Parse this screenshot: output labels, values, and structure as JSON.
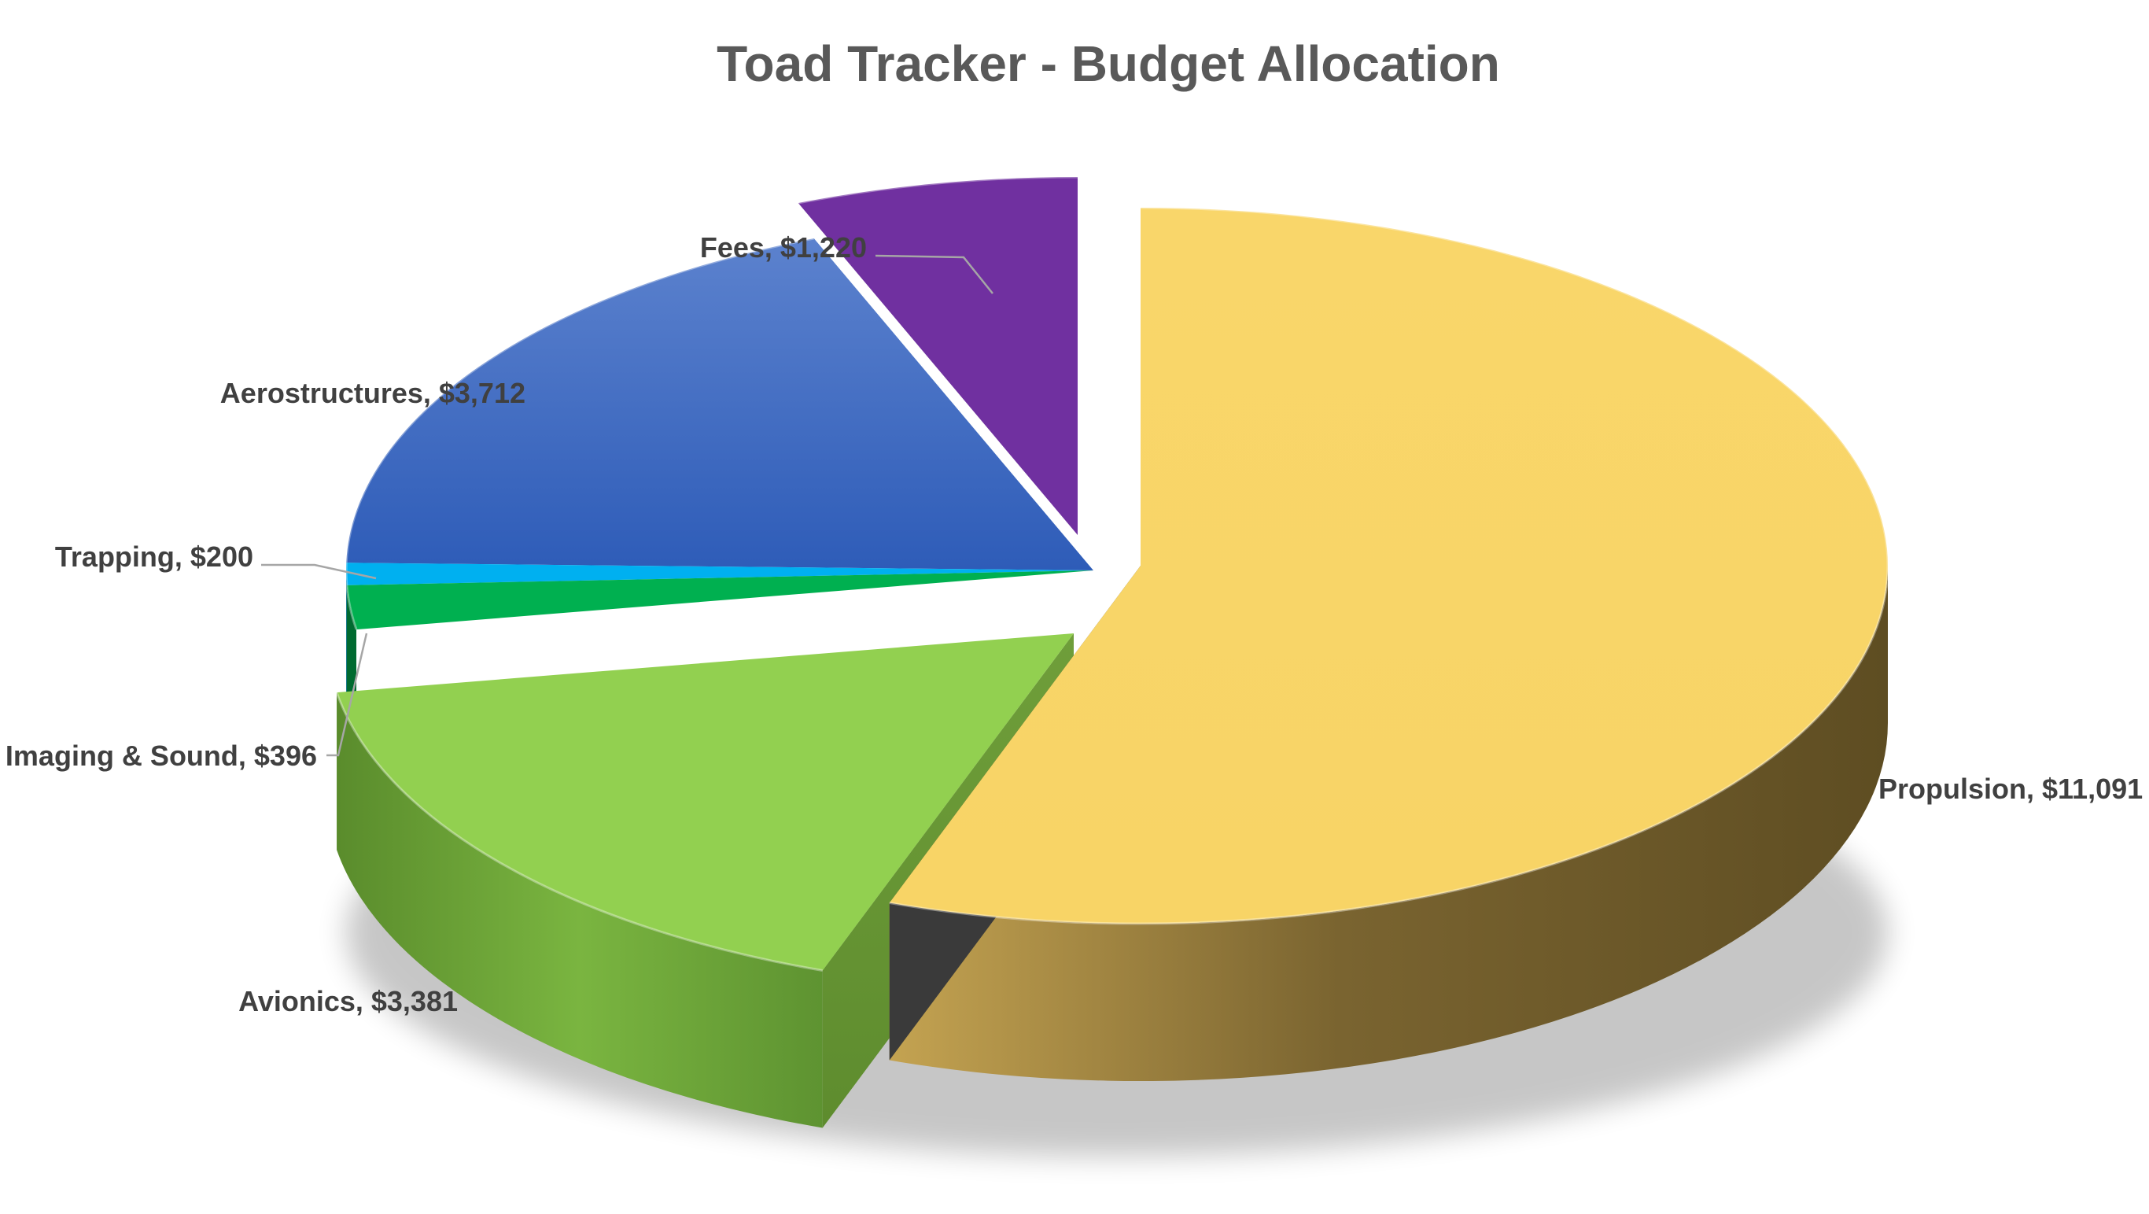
{
  "chart_data": {
    "type": "pie",
    "title": "Toad Tracker - Budget Allocation",
    "style": "3d-exploded",
    "slices": [
      {
        "label": "Propulsion",
        "value": 11091,
        "display": "$11,091",
        "color": "#F9D66A",
        "exploded": true
      },
      {
        "label": "Avionics",
        "value": 3381,
        "display": "$3,381",
        "color": "#92D050",
        "exploded": true
      },
      {
        "label": "Imaging & Sound",
        "value": 396,
        "display": "$396",
        "color": "#00B050",
        "exploded": false
      },
      {
        "label": "Trapping",
        "value": 200,
        "display": "$200",
        "color": "#00B0F0",
        "exploded": false
      },
      {
        "label": "Aerostructures",
        "value": 3712,
        "display": "$3,712",
        "color": "#3F6CC8",
        "exploded": false
      },
      {
        "label": "Fees",
        "value": 1220,
        "display": "$1,220",
        "color": "#7030A0",
        "exploded": true
      }
    ]
  }
}
